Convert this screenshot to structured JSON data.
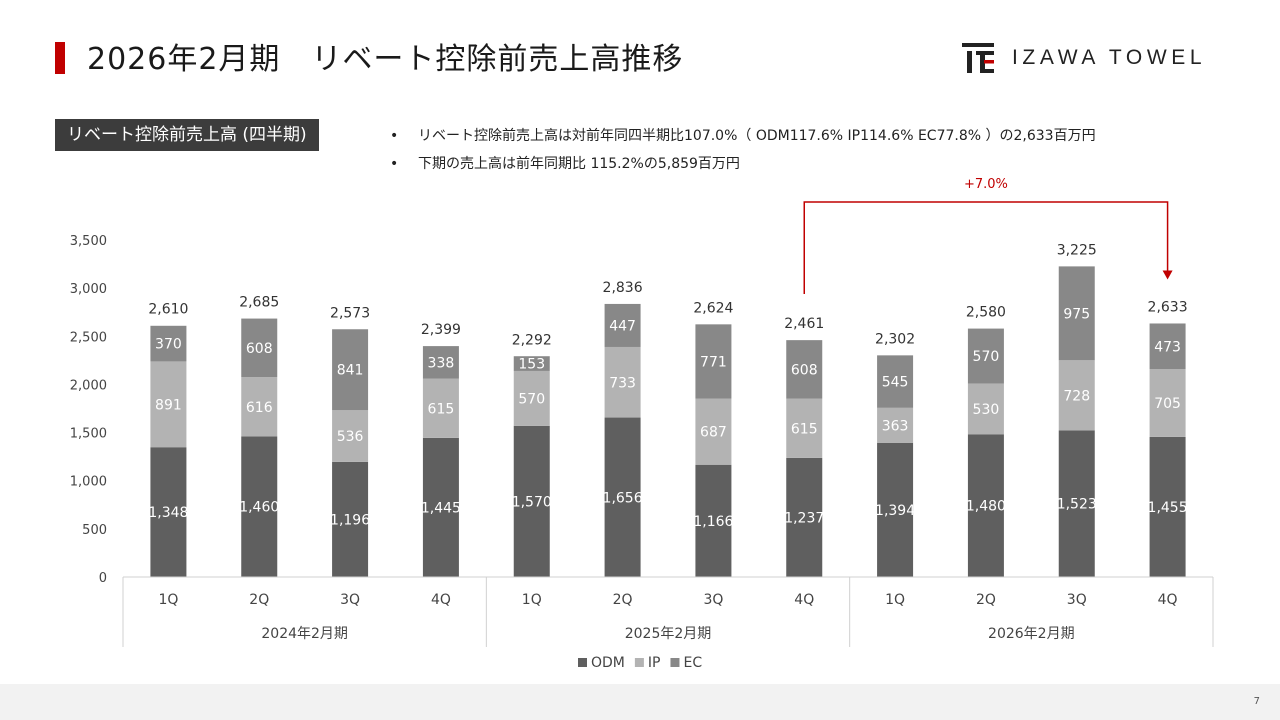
{
  "header": {
    "title": "2026年2月期　リベート控除前売上高推移",
    "accent_color": "#c00000",
    "logo_text": "IZAWA TOWEL",
    "logo_icon": "izawa-logo-mark"
  },
  "section_label": "リベート控除前売上高 (四半期)",
  "bullets": [
    "リベート控除前売上高は対前年同四半期比107.0%（ ODM117.6% IP114.6% EC77.8% ）の2,633百万円",
    "下期の売上高は前年同期比 115.2%の5,859百万円"
  ],
  "bullet_marker": "•",
  "chart_data": {
    "type": "bar",
    "stacked": true,
    "categories": [
      "1Q",
      "2Q",
      "3Q",
      "4Q",
      "1Q",
      "2Q",
      "3Q",
      "4Q",
      "1Q",
      "2Q",
      "3Q",
      "4Q"
    ],
    "groups": [
      {
        "label": "2024年2月期",
        "span": 4
      },
      {
        "label": "2025年2月期",
        "span": 4
      },
      {
        "label": "2026年2月期",
        "span": 4
      }
    ],
    "series": [
      {
        "name": "ODM",
        "color": "#5f5f5f",
        "values": [
          1348,
          1460,
          1196,
          1445,
          1570,
          1656,
          1166,
          1237,
          1394,
          1480,
          1523,
          1455
        ]
      },
      {
        "name": "IP",
        "color": "#b3b3b3",
        "values": [
          891,
          616,
          536,
          615,
          570,
          733,
          687,
          615,
          363,
          530,
          728,
          705
        ]
      },
      {
        "name": "EC",
        "color": "#888888",
        "values": [
          370,
          608,
          841,
          338,
          153,
          447,
          771,
          608,
          545,
          570,
          975,
          473
        ]
      }
    ],
    "totals": [
      2610,
      2685,
      2573,
      2399,
      2292,
      2836,
      2624,
      2461,
      2302,
      2580,
      3225,
      2633
    ],
    "ylim": [
      0,
      3500
    ],
    "yticks": [
      0,
      500,
      1000,
      1500,
      2000,
      2500,
      3000,
      3500
    ],
    "grid": false,
    "legend_position": "bottom",
    "annotation": {
      "text": "+7.0%",
      "from_index": 7,
      "to_index": 11,
      "color": "#c00000"
    }
  },
  "page_number": "7"
}
